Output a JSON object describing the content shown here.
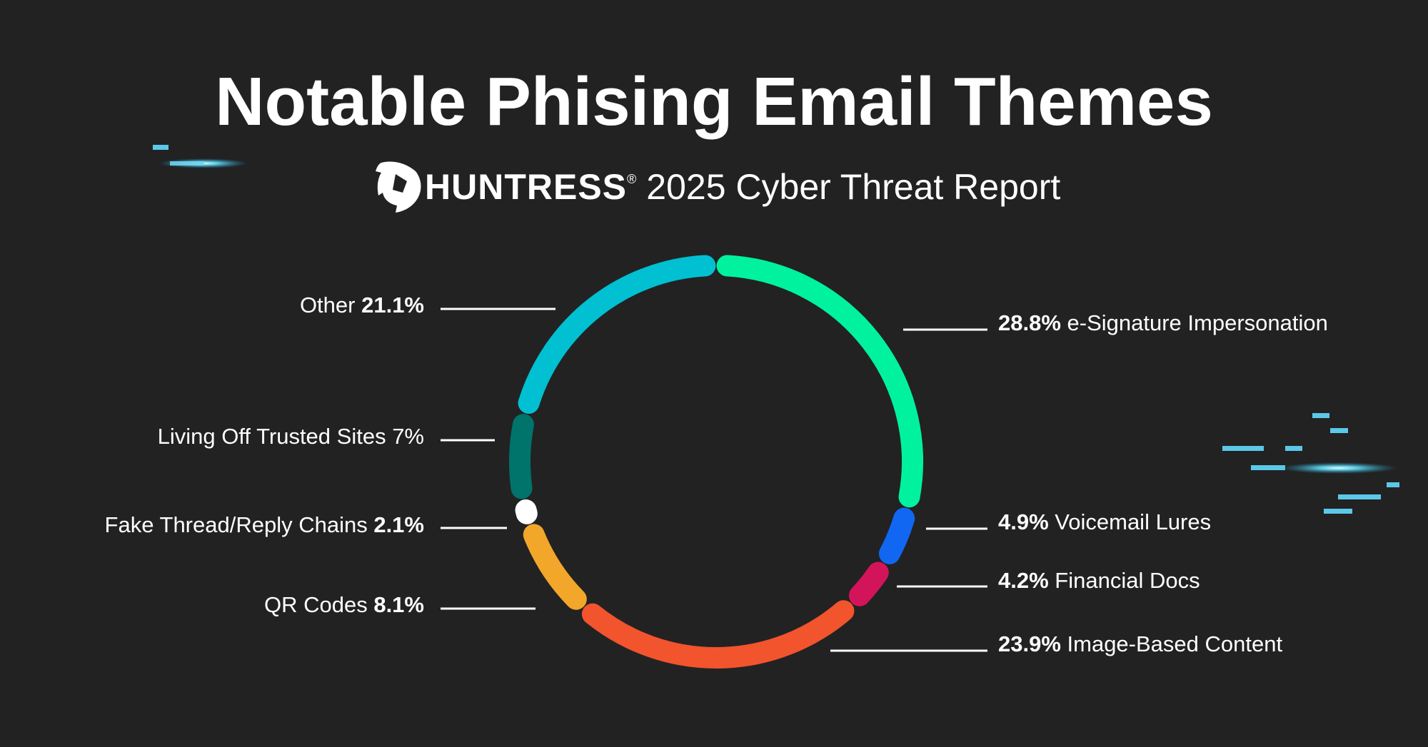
{
  "header": {
    "title": "Notable Phising Email Themes",
    "brand": "HUNTRESS",
    "registered_mark": "®",
    "report_name": "2025 Cyber Threat Report"
  },
  "chart_data": {
    "type": "pie",
    "donut": true,
    "title": "Notable Phising Email Themes",
    "slices": [
      {
        "name": "e-Signature Impersonation",
        "value": 28.8,
        "label": "28.8%",
        "color": "#00f29e"
      },
      {
        "name": "Voicemail Lures",
        "value": 4.9,
        "label": "4.9%",
        "color": "#1167f2"
      },
      {
        "name": "Financial Docs",
        "value": 4.2,
        "label": "4.2%",
        "color": "#d4145a"
      },
      {
        "name": "Image-Based Content",
        "value": 23.9,
        "label": "23.9%",
        "color": "#f2542d"
      },
      {
        "name": "QR Codes",
        "value": 8.1,
        "label": "8.1%",
        "color": "#f2a72a"
      },
      {
        "name": "Fake Thread/Reply Chains",
        "value": 2.1,
        "label": "2.1%",
        "color": "#ffffff"
      },
      {
        "name": "Living Off Trusted Sites",
        "value": 7,
        "label": "7%",
        "color": "#00736b"
      },
      {
        "name": "Other",
        "value": 21.1,
        "label": "21.1%",
        "color": "#00c0d1"
      }
    ]
  },
  "colors": {
    "background": "#222223",
    "text": "#ffffff",
    "accent_glow": "#5cc8e8"
  }
}
